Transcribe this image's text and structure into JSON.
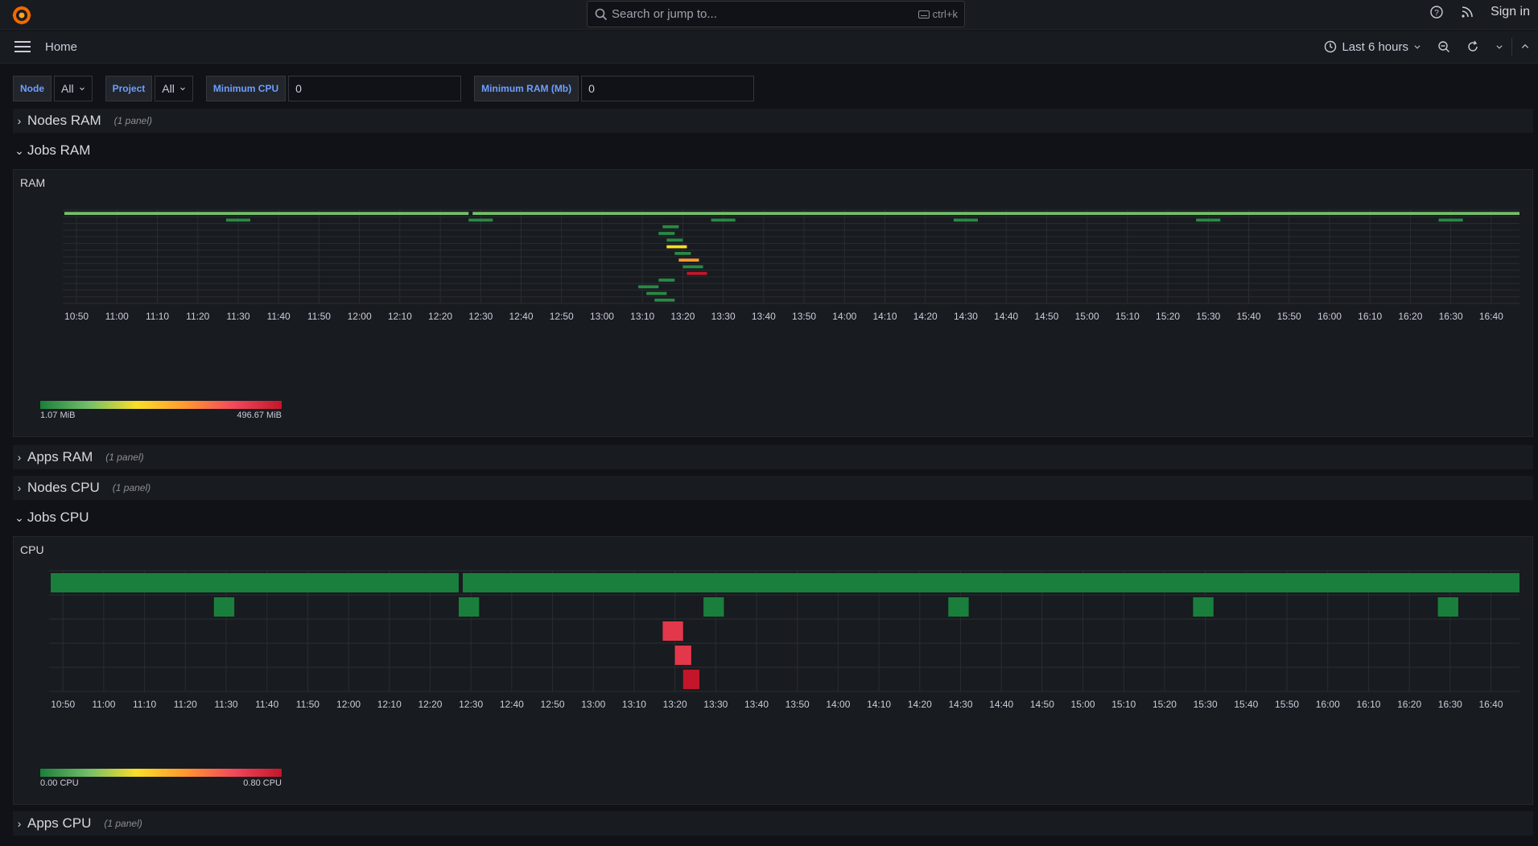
{
  "topbar": {
    "search_placeholder": "Search or jump to...",
    "search_shortcut": "ctrl+k",
    "sign_in": "Sign in"
  },
  "navbar": {
    "breadcrumb": "Home",
    "time_range": "Last 6 hours"
  },
  "variables": [
    {
      "label": "Node",
      "value": "All",
      "kind": "select"
    },
    {
      "label": "Project",
      "value": "All",
      "kind": "select"
    },
    {
      "label": "Minimum CPU",
      "value": "0",
      "kind": "input"
    },
    {
      "label": "Minimum RAM (Mb)",
      "value": "0",
      "kind": "input"
    }
  ],
  "rows": {
    "nodes_ram": {
      "title": "Nodes RAM",
      "count": "(1 panel)"
    },
    "jobs_ram": {
      "title": "Jobs RAM"
    },
    "apps_ram": {
      "title": "Apps RAM",
      "count": "(1 panel)"
    },
    "nodes_cpu": {
      "title": "Nodes CPU",
      "count": "(1 panel)"
    },
    "jobs_cpu": {
      "title": "Jobs CPU"
    },
    "apps_cpu": {
      "title": "Apps CPU",
      "count": "(1 panel)"
    }
  },
  "colors": {
    "accent": "#6e9fff",
    "background": "#111217",
    "panel": "#181b1f"
  },
  "chart_data": [
    {
      "type": "heatmap",
      "title": "RAM",
      "x_ticks": [
        "10:50",
        "11:00",
        "11:10",
        "11:20",
        "11:30",
        "11:40",
        "11:50",
        "12:00",
        "12:10",
        "12:20",
        "12:30",
        "12:40",
        "12:50",
        "13:00",
        "13:10",
        "13:20",
        "13:30",
        "13:40",
        "13:50",
        "14:00",
        "14:10",
        "14:20",
        "14:30",
        "14:40",
        "14:50",
        "15:00",
        "15:10",
        "15:20",
        "15:30",
        "15:40",
        "15:50",
        "16:00",
        "16:10",
        "16:20",
        "16:30",
        "16:40"
      ],
      "time_range": [
        "10:47",
        "16:47"
      ],
      "legend": {
        "min": "1.07 MiB",
        "max": "496.67 MiB"
      },
      "rows": 14,
      "bars": [
        {
          "row": 0,
          "start": "10:47",
          "end": "12:27",
          "value": 0.3
        },
        {
          "row": 0,
          "start": "12:28",
          "end": "16:47",
          "value": 0.3
        },
        {
          "row": 1,
          "start": "11:27",
          "end": "11:33",
          "value": 0.05
        },
        {
          "row": 1,
          "start": "12:27",
          "end": "12:33",
          "value": 0.05
        },
        {
          "row": 1,
          "start": "13:27",
          "end": "13:33",
          "value": 0.05
        },
        {
          "row": 1,
          "start": "14:27",
          "end": "14:33",
          "value": 0.05
        },
        {
          "row": 1,
          "start": "15:27",
          "end": "15:33",
          "value": 0.05
        },
        {
          "row": 1,
          "start": "16:27",
          "end": "16:33",
          "value": 0.05
        },
        {
          "row": 2,
          "start": "13:15",
          "end": "13:19",
          "value": 0.05
        },
        {
          "row": 3,
          "start": "13:14",
          "end": "13:18",
          "value": 0.05
        },
        {
          "row": 4,
          "start": "13:16",
          "end": "13:20",
          "value": 0.05
        },
        {
          "row": 5,
          "start": "13:16",
          "end": "13:21",
          "value": 0.5
        },
        {
          "row": 6,
          "start": "13:18",
          "end": "13:22",
          "value": 0.05
        },
        {
          "row": 7,
          "start": "13:19",
          "end": "13:24",
          "value": 0.65
        },
        {
          "row": 8,
          "start": "13:20",
          "end": "13:25",
          "value": 0.05
        },
        {
          "row": 9,
          "start": "13:21",
          "end": "13:26",
          "value": 1.0
        },
        {
          "row": 10,
          "start": "13:14",
          "end": "13:18",
          "value": 0.05
        },
        {
          "row": 11,
          "start": "13:09",
          "end": "13:14",
          "value": 0.05
        },
        {
          "row": 12,
          "start": "13:11",
          "end": "13:16",
          "value": 0.05
        },
        {
          "row": 13,
          "start": "13:13",
          "end": "13:18",
          "value": 0.05
        }
      ]
    },
    {
      "type": "heatmap",
      "title": "CPU",
      "x_ticks": [
        "10:50",
        "11:00",
        "11:10",
        "11:20",
        "11:30",
        "11:40",
        "11:50",
        "12:00",
        "12:10",
        "12:20",
        "12:30",
        "12:40",
        "12:50",
        "13:00",
        "13:10",
        "13:20",
        "13:30",
        "13:40",
        "13:50",
        "14:00",
        "14:10",
        "14:20",
        "14:30",
        "14:40",
        "14:50",
        "15:00",
        "15:10",
        "15:20",
        "15:30",
        "15:40",
        "15:50",
        "16:00",
        "16:10",
        "16:20",
        "16:30",
        "16:40"
      ],
      "time_range": [
        "10:47",
        "16:47"
      ],
      "legend": {
        "min": "0.00 CPU",
        "max": "0.80 CPU"
      },
      "rows": 5,
      "bars": [
        {
          "row": 0,
          "start": "10:47",
          "end": "12:27",
          "value": 0.0
        },
        {
          "row": 0,
          "start": "12:28",
          "end": "16:47",
          "value": 0.0
        },
        {
          "row": 1,
          "start": "11:27",
          "end": "11:32",
          "value": 0.0
        },
        {
          "row": 1,
          "start": "12:27",
          "end": "12:32",
          "value": 0.0
        },
        {
          "row": 1,
          "start": "13:27",
          "end": "13:32",
          "value": 0.0
        },
        {
          "row": 1,
          "start": "14:27",
          "end": "14:32",
          "value": 0.0
        },
        {
          "row": 1,
          "start": "15:27",
          "end": "15:32",
          "value": 0.0
        },
        {
          "row": 1,
          "start": "16:27",
          "end": "16:32",
          "value": 0.0
        },
        {
          "row": 2,
          "start": "13:17",
          "end": "13:22",
          "value": 0.9
        },
        {
          "row": 3,
          "start": "13:20",
          "end": "13:24",
          "value": 0.9
        },
        {
          "row": 4,
          "start": "13:22",
          "end": "13:26",
          "value": 1.0
        }
      ]
    }
  ]
}
